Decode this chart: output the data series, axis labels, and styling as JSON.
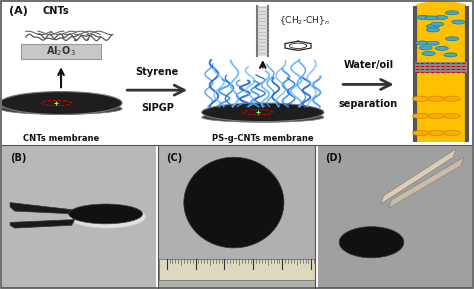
{
  "fig_width": 4.74,
  "fig_height": 2.89,
  "dpi": 100,
  "bg_color": "#ffffff",
  "border_color": "#555555",
  "panel_A_label": "(A)",
  "panel_B_label": "(B)",
  "panel_C_label": "(C)",
  "panel_D_label": "(D)",
  "cnts_label": "CNTs",
  "al2o3_label": "Al$_2$O$_3$",
  "cnts_membrane_label": "CNTs membrane",
  "ps_g_cnts_label": "PS-g-CNTs membrane",
  "styrene_label": "Styrene",
  "sipgp_label": "SIPGP",
  "water_oil_label": "Water/oil",
  "separation_label": "separation",
  "al2o3_color": "#c8c8c8",
  "al2o3_edge": "#999999",
  "membrane_dark": "#1e1e1e",
  "membrane_mid": "#444444",
  "membrane_edge": "#777777",
  "cnt_tube_color": "#888888",
  "blue_cnt_color1": "#4499ee",
  "blue_cnt_color2": "#2266cc",
  "blue_cnt_color3": "#66bbff",
  "water_yellow": "#ffc000",
  "water_ball_color": "#44aacc",
  "water_ball_edge": "#227799",
  "oil_drop_color": "#ffaa00",
  "oil_drop_edge": "#cc8800",
  "gray_wall": "#666666",
  "red_dashed_color": "#dd0000",
  "arrow_fill": "#ffffff",
  "arrow_edge": "#333333",
  "text_color": "#111111",
  "photo_bg_B": "#b8b8b8",
  "photo_bg_C": "#b0b0b0",
  "photo_bg_D": "#a0a0a0",
  "black_mem": "#111111",
  "tweezers_color": "#1a1a1a",
  "tweezers_D_color": "#ccbbaa"
}
